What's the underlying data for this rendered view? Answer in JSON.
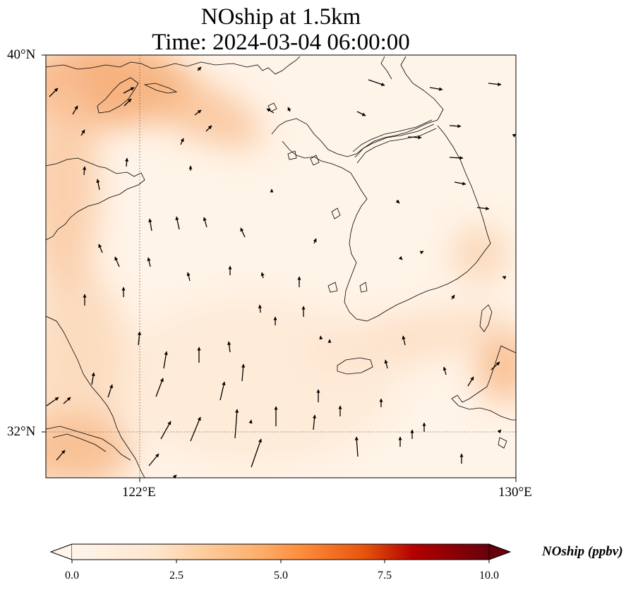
{
  "title": {
    "line1": "NOship at 1.5km",
    "line2": "Time: 2024-03-04 06:00:00"
  },
  "axes": {
    "lat_ticks": [
      "40°N",
      "32°N"
    ],
    "lon_ticks": [
      "122°E",
      "130°E"
    ],
    "extent": {
      "lon": [
        120,
        130
      ],
      "lat": [
        31,
        40
      ]
    },
    "gridlines": "dotted at 122°E and 32°N"
  },
  "colorbar": {
    "label": "NOship (ppbv)",
    "ticks": [
      "0.0",
      "2.5",
      "5.0",
      "7.5",
      "10.0"
    ],
    "range": [
      0,
      10
    ],
    "colormap": "Oranges-to-dark-red",
    "colors": [
      "#fff5eb",
      "#fdd0a2",
      "#fd8d3c",
      "#d94801",
      "#a50f15",
      "#67000d"
    ],
    "extend": "both"
  },
  "colors": {
    "coastline": "#000000",
    "background_low": "#fff5eb",
    "hotspot": "#f6b07a",
    "wind_arrow": "#000000"
  }
}
